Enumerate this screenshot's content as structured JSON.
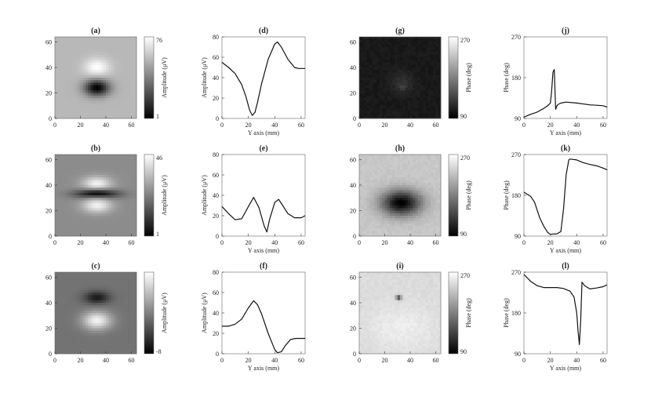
{
  "chart_data": [
    {
      "id": "a",
      "type": "heatmap",
      "title": "(a)",
      "xlabel": "",
      "ylabel": "",
      "xlim": [
        0,
        64
      ],
      "ylim": [
        0,
        64
      ],
      "xticks": [
        0,
        20,
        40,
        60
      ],
      "yticks": [
        0,
        20,
        40,
        60
      ],
      "colorbar": {
        "label": "Amplitude (μV)",
        "min_label": "1",
        "max_label": "76"
      },
      "pattern": {
        "background": 0.72,
        "blobs": [
          {
            "x": 33,
            "y": 40,
            "value": 1.0,
            "sx": 7,
            "sy": 5
          },
          {
            "x": 33,
            "y": 24,
            "value": 0.0,
            "sx": 7,
            "sy": 4.5
          }
        ]
      }
    },
    {
      "id": "d",
      "type": "line",
      "title": "(d)",
      "xlabel": "Y axis (mm)",
      "ylabel": "Amplitude (μV)",
      "xlim": [
        0,
        63
      ],
      "ylim": [
        0,
        80
      ],
      "xticks": [
        0,
        20,
        40,
        60
      ],
      "yticks": [
        0,
        20,
        40,
        60,
        80
      ],
      "series": [
        {
          "x": [
            0,
            5,
            10,
            15,
            18,
            21,
            23,
            25,
            27,
            30,
            35,
            40,
            42,
            45,
            50,
            55,
            58,
            60,
            63
          ],
          "y": [
            55,
            50,
            44,
            33,
            22,
            8,
            3,
            6,
            16,
            34,
            58,
            73,
            75,
            70,
            58,
            50,
            49,
            49,
            49
          ]
        }
      ]
    },
    {
      "id": "g",
      "type": "heatmap",
      "title": "(g)",
      "xlabel": "",
      "ylabel": "",
      "xlim": [
        0,
        64
      ],
      "ylim": [
        0,
        64
      ],
      "xticks": [
        0,
        20,
        40,
        60
      ],
      "yticks": [
        0,
        20,
        40,
        60
      ],
      "colorbar": {
        "label": "Phase (deg)",
        "min_label": "90",
        "max_label": "270"
      },
      "pattern": {
        "background": 0.1,
        "blobs": [
          {
            "x": 34,
            "y": 25,
            "value": 0.9,
            "sx": 1.5,
            "sy": 1.2
          },
          {
            "x": 34,
            "y": 28,
            "value": 0.2,
            "sx": 6,
            "sy": 6
          }
        ]
      }
    },
    {
      "id": "j",
      "type": "line",
      "title": "(j)",
      "xlabel": "Y axis (mm)",
      "ylabel": "Phase (deg)",
      "xlim": [
        0,
        63
      ],
      "ylim": [
        90,
        270
      ],
      "xticks": [
        0,
        20,
        40,
        60
      ],
      "yticks": [
        90,
        180,
        270
      ],
      "series": [
        {
          "x": [
            0,
            5,
            10,
            15,
            18,
            20,
            21,
            22,
            23,
            24,
            25,
            26,
            28,
            32,
            40,
            50,
            55,
            60,
            63
          ],
          "y": [
            93,
            99,
            104,
            112,
            118,
            124,
            150,
            192,
            198,
            110,
            118,
            121,
            124,
            126,
            124,
            120,
            119,
            118,
            115
          ]
        }
      ]
    },
    {
      "id": "b",
      "type": "heatmap",
      "title": "(b)",
      "xlabel": "",
      "ylabel": "",
      "xlim": [
        0,
        64
      ],
      "ylim": [
        0,
        64
      ],
      "xticks": [
        0,
        20,
        40,
        60
      ],
      "yticks": [
        0,
        20,
        40,
        60
      ],
      "colorbar": {
        "label": "Amplitude (μV)",
        "min_label": "1",
        "max_label": "46"
      },
      "pattern": {
        "background": 0.55,
        "blobs": [
          {
            "x": 33,
            "y": 41,
            "value": 0.95,
            "sx": 8,
            "sy": 4
          },
          {
            "x": 33,
            "y": 33,
            "value": 0.0,
            "sx": 12,
            "sy": 2.5
          },
          {
            "x": 33,
            "y": 24,
            "value": 0.95,
            "sx": 8,
            "sy": 4
          }
        ]
      }
    },
    {
      "id": "e",
      "type": "line",
      "title": "(e)",
      "xlabel": "Y axis (mm)",
      "ylabel": "Amplitude (μV)",
      "xlim": [
        0,
        63
      ],
      "ylim": [
        0,
        80
      ],
      "xticks": [
        0,
        20,
        40,
        60
      ],
      "yticks": [
        0,
        20,
        40,
        60,
        80
      ],
      "series": [
        {
          "x": [
            0,
            5,
            10,
            15,
            20,
            24,
            28,
            32,
            34,
            36,
            40,
            43,
            46,
            50,
            55,
            60,
            63
          ],
          "y": [
            29,
            22,
            16,
            17,
            29,
            38,
            28,
            10,
            4,
            16,
            33,
            36,
            30,
            22,
            18,
            18,
            20
          ]
        }
      ]
    },
    {
      "id": "h",
      "type": "heatmap",
      "title": "(h)",
      "xlabel": "",
      "ylabel": "",
      "xlim": [
        0,
        64
      ],
      "ylim": [
        0,
        64
      ],
      "xticks": [
        0,
        20,
        40,
        60
      ],
      "yticks": [
        0,
        20,
        40,
        60
      ],
      "colorbar": {
        "label": "Phase (deg)",
        "min_label": "90",
        "max_label": "270"
      },
      "pattern": {
        "background": 0.78,
        "blobs": [
          {
            "x": 33,
            "y": 26,
            "value": 0.0,
            "sx": 11,
            "sy": 7
          }
        ]
      }
    },
    {
      "id": "k",
      "type": "line",
      "title": "(k)",
      "xlabel": "Y axis (mm)",
      "ylabel": "Phase (deg)",
      "xlim": [
        0,
        63
      ],
      "ylim": [
        90,
        270
      ],
      "xticks": [
        0,
        20,
        40,
        60
      ],
      "yticks": [
        90,
        180,
        270
      ],
      "series": [
        {
          "x": [
            0,
            5,
            8,
            12,
            15,
            18,
            20,
            25,
            28,
            30,
            32,
            34,
            35,
            40,
            45,
            50,
            55,
            60,
            63
          ],
          "y": [
            187,
            178,
            165,
            130,
            112,
            98,
            94,
            95,
            100,
            150,
            225,
            258,
            260,
            258,
            252,
            248,
            245,
            240,
            236
          ]
        }
      ]
    },
    {
      "id": "c",
      "type": "heatmap",
      "title": "(c)",
      "xlabel": "",
      "ylabel": "",
      "xlim": [
        0,
        64
      ],
      "ylim": [
        0,
        64
      ],
      "xticks": [
        0,
        20,
        40,
        60
      ],
      "yticks": [
        0,
        20,
        40,
        60
      ],
      "colorbar": {
        "label": "Amplitude (μV)",
        "min_label": "-8",
        "max_label": ""
      },
      "pattern": {
        "background": 0.45,
        "blobs": [
          {
            "x": 33,
            "y": 44,
            "value": 0.1,
            "sx": 7,
            "sy": 3.5
          },
          {
            "x": 33,
            "y": 26,
            "value": 0.95,
            "sx": 8,
            "sy": 5
          }
        ]
      }
    },
    {
      "id": "f",
      "type": "line",
      "title": "(f)",
      "xlabel": "Y axis (mm)",
      "ylabel": "Amplitude (μV)",
      "xlim": [
        0,
        63
      ],
      "ylim": [
        0,
        80
      ],
      "xticks": [
        0,
        20,
        40,
        60
      ],
      "yticks": [
        0,
        20,
        40,
        60,
        80
      ],
      "series": [
        {
          "x": [
            0,
            5,
            10,
            15,
            20,
            24,
            27,
            30,
            35,
            40,
            42,
            45,
            48,
            52,
            56,
            60,
            63
          ],
          "y": [
            27,
            27,
            29,
            34,
            45,
            52,
            48,
            39,
            20,
            4,
            1,
            2,
            8,
            14,
            15,
            15,
            15
          ]
        }
      ]
    },
    {
      "id": "i",
      "type": "heatmap",
      "title": "(i)",
      "xlabel": "",
      "ylabel": "",
      "xlim": [
        0,
        64
      ],
      "ylim": [
        0,
        64
      ],
      "xticks": [
        0,
        20,
        40,
        60
      ],
      "yticks": [
        0,
        20,
        40,
        60
      ],
      "colorbar": {
        "label": "Phase (deg)",
        "min_label": "90",
        "max_label": "270"
      },
      "pattern": {
        "background": 0.86,
        "blobs": [
          {
            "x": 31,
            "y": 44,
            "value": 0.05,
            "sx": 1.5,
            "sy": 1.2
          },
          {
            "x": 33,
            "y": 20,
            "value": 0.93,
            "sx": 18,
            "sy": 12
          }
        ]
      }
    },
    {
      "id": "l",
      "type": "line",
      "title": "(l)",
      "xlabel": "Y axis (mm)",
      "ylabel": "Phase (deg)",
      "xlim": [
        0,
        63
      ],
      "ylim": [
        90,
        270
      ],
      "xticks": [
        0,
        20,
        40,
        60
      ],
      "yticks": [
        90,
        180,
        270
      ],
      "series": [
        {
          "x": [
            0,
            5,
            10,
            15,
            20,
            25,
            30,
            35,
            38,
            40,
            41,
            42,
            43,
            44,
            46,
            50,
            55,
            60,
            63
          ],
          "y": [
            265,
            250,
            240,
            236,
            236,
            236,
            234,
            228,
            215,
            180,
            140,
            110,
            160,
            248,
            240,
            233,
            235,
            238,
            242
          ]
        }
      ]
    }
  ]
}
